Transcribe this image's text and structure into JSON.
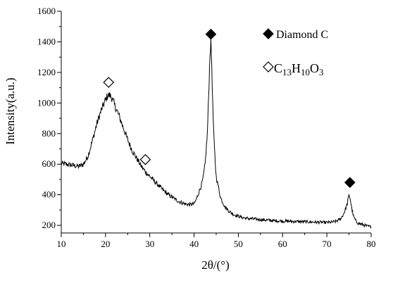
{
  "chart_data": {
    "type": "line",
    "title": "",
    "xlabel": "2θ/(°)",
    "ylabel": "Intensity(a.u.)",
    "xlim": [
      10,
      80
    ],
    "ylim": [
      150,
      1600
    ],
    "x_ticks": [
      10,
      20,
      30,
      40,
      50,
      60,
      70,
      80
    ],
    "y_ticks": [
      200,
      400,
      600,
      800,
      1000,
      1200,
      1400,
      1600
    ],
    "y_tick_labels": [
      "200",
      "400",
      "600",
      "800",
      "1000",
      "1200",
      "1400",
      "1600"
    ],
    "x_tick_labels": [
      "10",
      "20",
      "30",
      "40",
      "50",
      "60",
      "70",
      "80"
    ],
    "grid": false,
    "legend_position": "top-right",
    "line_color": "#000000",
    "series": [
      {
        "x": [
          10,
          12,
          14,
          15,
          16,
          17,
          18,
          19,
          20,
          20.5,
          21,
          21.5,
          22,
          23,
          24,
          25,
          26,
          27,
          28,
          29,
          30,
          31,
          32,
          33,
          34,
          35,
          36,
          37,
          38,
          39,
          40,
          40.5,
          41,
          41.5,
          42,
          42.5,
          43,
          43.3,
          43.6,
          43.8,
          44,
          44.2,
          44.5,
          44.8,
          45,
          45.5,
          46,
          47,
          48,
          49,
          50,
          51,
          52,
          54,
          56,
          58,
          60,
          62,
          64,
          66,
          68,
          70,
          71,
          72,
          73,
          73.5,
          74,
          74.5,
          74.8,
          75,
          75.2,
          75.4,
          75.7,
          76,
          76.5,
          77,
          78,
          79,
          80
        ],
        "y": [
          605,
          595,
          585,
          600,
          650,
          750,
          860,
          950,
          1020,
          1050,
          1050,
          1030,
          990,
          920,
          840,
          760,
          690,
          640,
          590,
          550,
          520,
          490,
          460,
          430,
          405,
          385,
          365,
          350,
          340,
          335,
          340,
          370,
          410,
          450,
          500,
          600,
          800,
          1050,
          1330,
          1390,
          1250,
          1000,
          760,
          600,
          520,
          450,
          380,
          320,
          290,
          270,
          260,
          250,
          245,
          240,
          235,
          230,
          228,
          226,
          224,
          222,
          220,
          218,
          220,
          225,
          240,
          260,
          290,
          330,
          370,
          395,
          385,
          350,
          300,
          260,
          230,
          215,
          205,
          195,
          190
        ]
      }
    ],
    "markers": [
      {
        "symbol": "filled-diamond",
        "x": 43.8,
        "y": 1450
      },
      {
        "symbol": "filled-diamond",
        "x": 75.2,
        "y": 480
      },
      {
        "symbol": "open-diamond",
        "x": 20.7,
        "y": 1135
      },
      {
        "symbol": "open-diamond",
        "x": 29,
        "y": 630
      }
    ],
    "legend": [
      {
        "symbol": "filled-diamond",
        "label": "Diamond C"
      },
      {
        "symbol": "open-diamond",
        "label_parts": [
          {
            "text": "C",
            "sub": false
          },
          {
            "text": "13",
            "sub": true
          },
          {
            "text": "H",
            "sub": false
          },
          {
            "text": "10",
            "sub": true
          },
          {
            "text": "O",
            "sub": false
          },
          {
            "text": "3",
            "sub": true
          }
        ]
      }
    ]
  }
}
